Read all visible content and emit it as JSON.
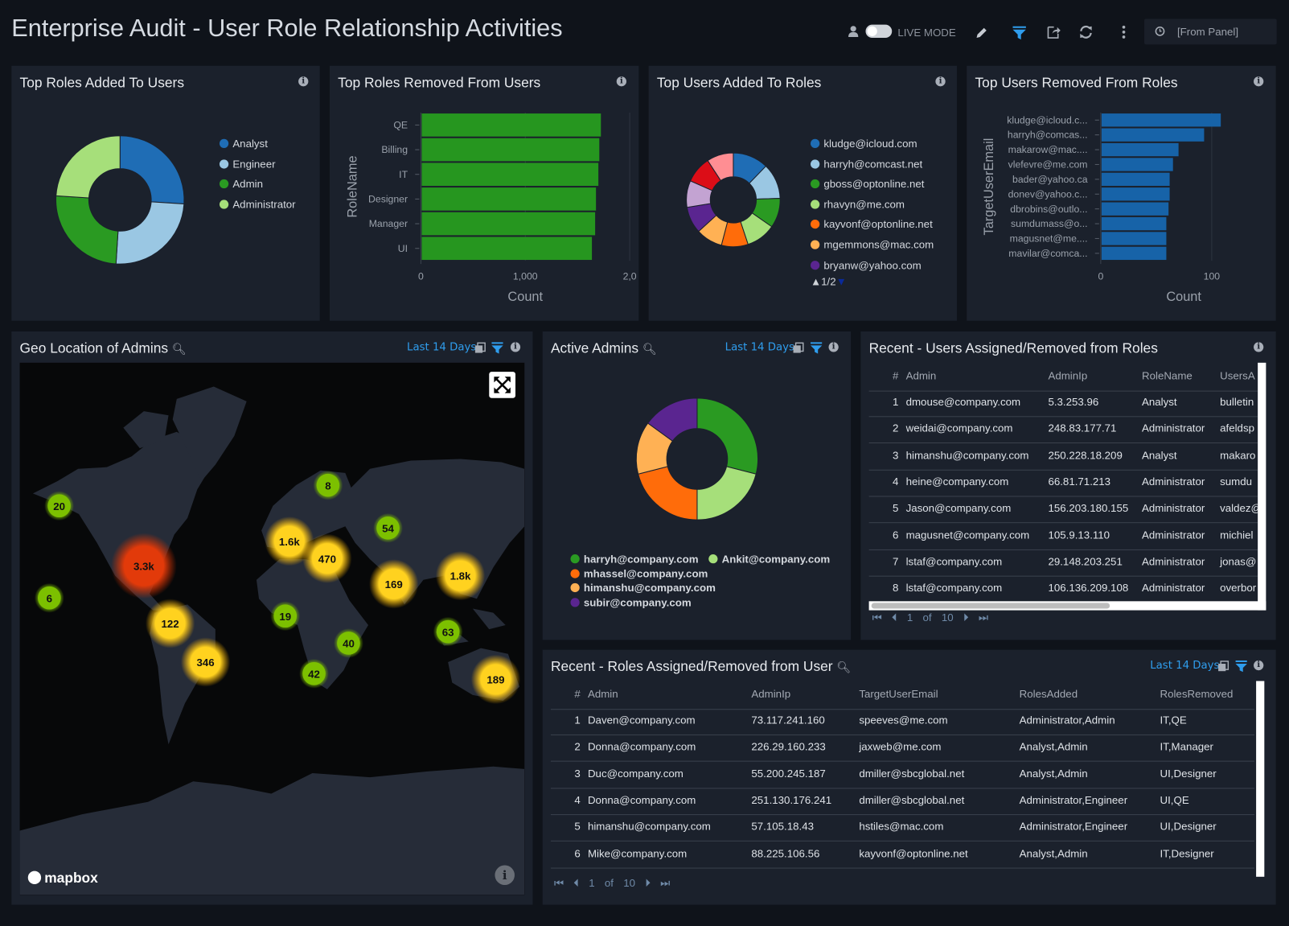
{
  "header": {
    "title": "Enterprise Audit - User Role Relationship Activities",
    "live_mode": "LIVE MODE",
    "time_range": "[From Panel]",
    "icons": [
      "user-icon",
      "toggle",
      "pencil-icon",
      "filter-icon",
      "share-icon",
      "refresh-icon",
      "kebab-icon",
      "clock-icon"
    ]
  },
  "colors": {
    "accent": "#2f9ded",
    "panel": "#1b212c",
    "background": "#0f131a",
    "bar_green": "#26961f",
    "bar_blue": "#1763a8"
  },
  "panels": {
    "roles_added": {
      "title": "Top Roles Added To Users"
    },
    "roles_removed": {
      "title": "Top Roles Removed From Users"
    },
    "users_added": {
      "title": "Top Users Added To Roles",
      "pager": "1/2"
    },
    "users_removed": {
      "title": "Top Users Removed From Roles"
    },
    "geo": {
      "title": "Geo Location of Admins",
      "range": "Last 14 Days",
      "attribution": "mapbox"
    },
    "active": {
      "title": "Active Admins",
      "range": "Last 14 Days"
    },
    "recent_users": {
      "title": "Recent - Users Assigned/Removed from Roles"
    },
    "recent_roles": {
      "title": "Recent - Roles Assigned/Removed from User",
      "range": "Last 14 Days"
    }
  },
  "chart_data": [
    {
      "type": "pie",
      "donut": true,
      "categories": [
        "Analyst",
        "Engineer",
        "Admin",
        "Administrator"
      ],
      "values": [
        26,
        25,
        25,
        24
      ],
      "colors": [
        "#1f6db5",
        "#9ac7e3",
        "#2a9a22",
        "#a6df7a"
      ],
      "legend": "right"
    },
    {
      "type": "bar",
      "orientation": "horizontal",
      "categories": [
        "QE",
        "Billing",
        "IT",
        "Designer",
        "Manager",
        "UI"
      ],
      "values": [
        1724,
        1709,
        1700,
        1677,
        1669,
        1638
      ],
      "xlabel": "Count",
      "ylabel": "RoleName",
      "xlim": [
        0,
        2000
      ],
      "xticks": [
        "0",
        "1,000",
        "2,0"
      ],
      "color": "#26961f"
    },
    {
      "type": "pie",
      "donut": true,
      "categories": [
        "kludge@icloud.com",
        "harryh@comcast.net",
        "gboss@optonline.net",
        "rhavyn@me.com",
        "kayvonf@optonline.net",
        "mgemmons@mac.com",
        "bryanw@yahoo.com",
        "",
        "",
        ""
      ],
      "values": [
        12,
        12,
        10,
        10,
        9,
        9,
        9,
        9,
        9,
        9
      ],
      "colors": [
        "#1f6db5",
        "#9ac7e3",
        "#2a9a22",
        "#a6df7a",
        "#ff6c0a",
        "#ffb154",
        "#5a2590",
        "#c3a3d2",
        "#dc0d17",
        "#ff8e93"
      ],
      "legend": "right"
    },
    {
      "type": "bar",
      "orientation": "horizontal",
      "categories": [
        "kludge@icloud.c...",
        "harryh@comcas...",
        "makarow@mac....",
        "vlefevre@me.com",
        "bader@yahoo.ca",
        "donev@yahoo.c...",
        "dbrobins@outlo...",
        "sumdumass@o...",
        "magusnet@me....",
        "mavilar@comca..."
      ],
      "values": [
        108,
        93,
        70,
        65,
        62,
        62,
        61,
        59,
        59,
        59
      ],
      "xlabel": "Count",
      "ylabel": "TargetUserEmail",
      "xlim": [
        0,
        125
      ],
      "xticks": [
        "0",
        "100"
      ],
      "color": "#1763a8"
    },
    {
      "type": "pie",
      "donut": true,
      "categories": [
        "harryh@company.com",
        "Ankit@company.com",
        "mhassel@company.com",
        "himanshu@company.com",
        "subir@company.com"
      ],
      "values": [
        29,
        21,
        21,
        14,
        15
      ],
      "colors": [
        "#2a9a22",
        "#a6df7a",
        "#ff6c0a",
        "#ffb154",
        "#5a2590"
      ],
      "legend": "bottom"
    }
  ],
  "map_clusters": [
    {
      "label": "20",
      "level": "low"
    },
    {
      "label": "6",
      "level": "low"
    },
    {
      "label": "3.3k",
      "level": "high"
    },
    {
      "label": "122",
      "level": "mid"
    },
    {
      "label": "346",
      "level": "mid"
    },
    {
      "label": "8",
      "level": "low"
    },
    {
      "label": "1.6k",
      "level": "mid"
    },
    {
      "label": "470",
      "level": "mid"
    },
    {
      "label": "54",
      "level": "low"
    },
    {
      "label": "169",
      "level": "mid"
    },
    {
      "label": "1.8k",
      "level": "mid"
    },
    {
      "label": "19",
      "level": "low"
    },
    {
      "label": "40",
      "level": "low"
    },
    {
      "label": "42",
      "level": "low"
    },
    {
      "label": "63",
      "level": "low"
    },
    {
      "label": "189",
      "level": "mid"
    }
  ],
  "recent_users_table": {
    "columns": [
      "#",
      "Admin",
      "AdminIp",
      "RoleName",
      "UsersA"
    ],
    "rows": [
      [
        "1",
        "dmouse@company.com",
        "5.3.253.96",
        "Analyst",
        "bulletin"
      ],
      [
        "2",
        "weidai@company.com",
        "248.83.177.71",
        "Administrator",
        "afeldsp"
      ],
      [
        "3",
        "himanshu@company.com",
        "250.228.18.209",
        "Analyst",
        "makaro"
      ],
      [
        "4",
        "heine@company.com",
        "66.81.71.213",
        "Administrator",
        "sumdu"
      ],
      [
        "5",
        "Jason@company.com",
        "156.203.180.155",
        "Administrator",
        "valdez@"
      ],
      [
        "6",
        "magusnet@company.com",
        "105.9.13.110",
        "Administrator",
        "michiel"
      ],
      [
        "7",
        "lstaf@company.com",
        "29.148.203.251",
        "Administrator",
        "jonas@"
      ],
      [
        "8",
        "lstaf@company.com",
        "106.136.209.108",
        "Administrator",
        "overbor"
      ]
    ],
    "pager": {
      "page": "1",
      "of": "of",
      "total": "10"
    }
  },
  "recent_roles_table": {
    "columns": [
      "#",
      "Admin",
      "AdminIp",
      "TargetUserEmail",
      "RolesAdded",
      "RolesRemoved"
    ],
    "rows": [
      [
        "1",
        "Daven@company.com",
        "73.117.241.160",
        "speeves@me.com",
        "Administrator,Admin",
        "IT,QE"
      ],
      [
        "2",
        "Donna@company.com",
        "226.29.160.233",
        "jaxweb@me.com",
        "Analyst,Admin",
        "IT,Manager"
      ],
      [
        "3",
        "Duc@company.com",
        "55.200.245.187",
        "dmiller@sbcglobal.net",
        "Analyst,Admin",
        "UI,Designer"
      ],
      [
        "4",
        "Donna@company.com",
        "251.130.176.241",
        "dmiller@sbcglobal.net",
        "Administrator,Engineer",
        "UI,QE"
      ],
      [
        "5",
        "himanshu@company.com",
        "57.105.18.43",
        "hstiles@mac.com",
        "Administrator,Engineer",
        "UI,Designer"
      ],
      [
        "6",
        "Mike@company.com",
        "88.225.106.56",
        "kayvonf@optonline.net",
        "Analyst,Admin",
        "IT,Designer"
      ]
    ],
    "pager": {
      "page": "1",
      "of": "of",
      "total": "10"
    }
  }
}
